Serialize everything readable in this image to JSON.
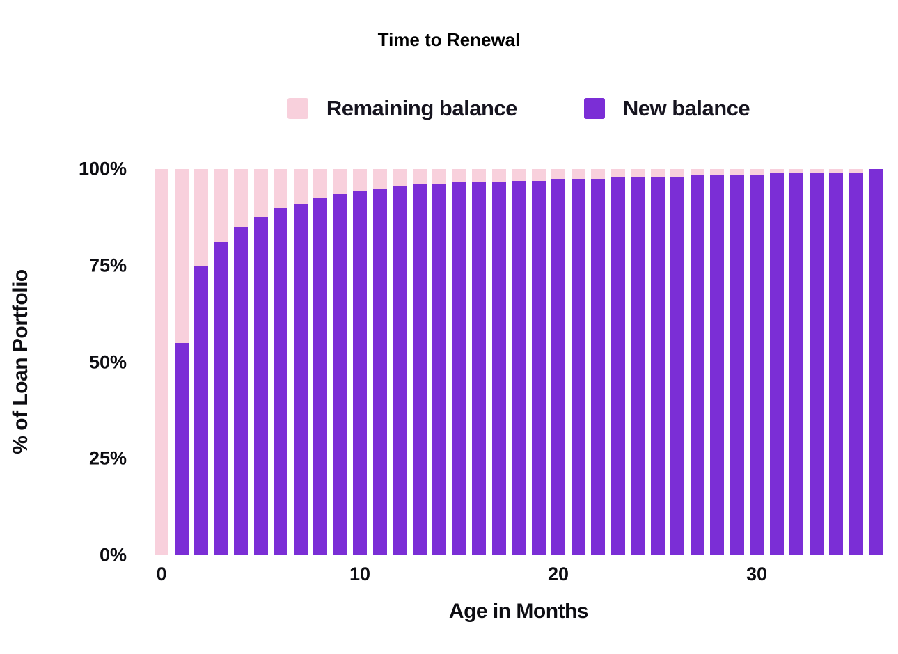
{
  "chart_data": {
    "type": "bar",
    "stacked": true,
    "title": "Time to Renewal",
    "xlabel": "Age in Months",
    "ylabel": "% of Loan Portfolio",
    "ylim": [
      0,
      100
    ],
    "grid": false,
    "legend_position": "top-center",
    "months": [
      0,
      1,
      2,
      3,
      4,
      5,
      6,
      7,
      8,
      9,
      10,
      11,
      12,
      13,
      14,
      15,
      16,
      17,
      18,
      19,
      20,
      21,
      22,
      23,
      24,
      25,
      26,
      27,
      28,
      29,
      30,
      31,
      32,
      33,
      34,
      35,
      36
    ],
    "x_ticks": [
      0,
      10,
      20,
      30
    ],
    "y_tick_values": [
      100,
      75,
      50,
      25,
      0
    ],
    "y_tick_labels": [
      "100%",
      "75%",
      "50%",
      "25%",
      "0%"
    ],
    "series": [
      {
        "name": "Remaining balance",
        "color": "#f8d0dc",
        "values": [
          100,
          45,
          25,
          19,
          15,
          12.5,
          10,
          9,
          7.5,
          6.5,
          5.5,
          5,
          4.5,
          4,
          4,
          3.5,
          3.5,
          3.5,
          3,
          3,
          2.5,
          2.5,
          2.5,
          2,
          2,
          2,
          2,
          1.5,
          1.5,
          1.5,
          1.5,
          1,
          1,
          1,
          1,
          1,
          0
        ]
      },
      {
        "name": "New balance",
        "color": "#7b2ed6",
        "values": [
          0,
          55,
          75,
          81,
          85,
          87.5,
          90,
          91,
          92.5,
          93.5,
          94.5,
          95,
          95.5,
          96,
          96,
          96.5,
          96.5,
          96.5,
          97,
          97,
          97.5,
          97.5,
          97.5,
          98,
          98,
          98,
          98,
          98.5,
          98.5,
          98.5,
          98.5,
          99,
          99,
          99,
          99,
          99,
          100
        ]
      }
    ]
  },
  "colors": {
    "remaining_balance": "#f8d0dc",
    "new_balance": "#7b2ed6",
    "text": "#0d0d12"
  }
}
